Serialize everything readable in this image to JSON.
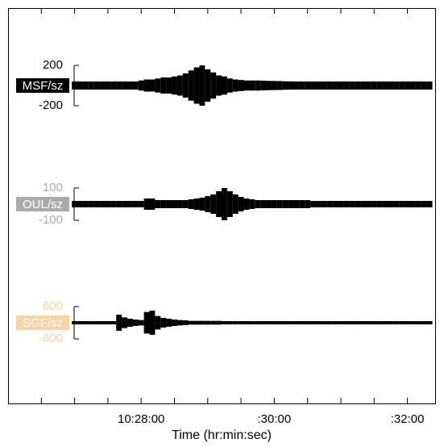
{
  "chart_data": {
    "type": "seismogram",
    "xlabel": "Time (hr:min:sec)",
    "xlim": [
      37560,
      37945
    ],
    "xticks": [
      {
        "value": 37680,
        "label": "10:28:00"
      },
      {
        "value": 37800,
        "label": ":30:00"
      },
      {
        "value": 37920,
        "label": ":32:00"
      }
    ],
    "xminorticks": [
      37590,
      37620,
      37650,
      37710,
      37740,
      37770,
      37830,
      37860,
      37890
    ],
    "trace_color": "#000000",
    "x": [
      37620,
      37625,
      37630,
      37635,
      37640,
      37645,
      37650,
      37655,
      37660,
      37665,
      37670,
      37675,
      37680,
      37685,
      37690,
      37695,
      37700,
      37705,
      37710,
      37715,
      37720,
      37725,
      37730,
      37735,
      37740,
      37745,
      37750,
      37755,
      37760,
      37765,
      37770,
      37775,
      37780,
      37785,
      37790,
      37795,
      37800,
      37805,
      37810,
      37815,
      37820,
      37825,
      37830,
      37835,
      37840,
      37845,
      37850,
      37855,
      37860,
      37865,
      37870,
      37875,
      37880,
      37885,
      37890,
      37895,
      37900,
      37905,
      37910,
      37915,
      37920,
      37925,
      37930,
      37935,
      37940
    ],
    "series": [
      {
        "name": "MSF/sz",
        "color": "#000000",
        "ylim": [
          -200,
          200
        ],
        "yticks": [
          200,
          -200
        ],
        "values": [
          40,
          40,
          40,
          40,
          40,
          40,
          40,
          40,
          40,
          40,
          40,
          40,
          50,
          60,
          60,
          70,
          80,
          80,
          90,
          100,
          120,
          150,
          180,
          200,
          160,
          130,
          100,
          90,
          70,
          60,
          55,
          50,
          50,
          50,
          48,
          46,
          45,
          44,
          42,
          41,
          40,
          40,
          40,
          40,
          40,
          40,
          40,
          40,
          40,
          40,
          40,
          40,
          40,
          40,
          40,
          40,
          40,
          40,
          40,
          40,
          40,
          40,
          40,
          40,
          40
        ]
      },
      {
        "name": "OUL/sz",
        "color": "#aaaaaa",
        "ylim": [
          -100,
          100
        ],
        "yticks": [
          100,
          -100
        ],
        "values": [
          20,
          20,
          20,
          20,
          20,
          20,
          20,
          20,
          20,
          20,
          20,
          20,
          20,
          35,
          35,
          25,
          25,
          25,
          25,
          25,
          25,
          30,
          35,
          40,
          50,
          60,
          80,
          100,
          80,
          60,
          45,
          35,
          30,
          25,
          25,
          25,
          25,
          25,
          25,
          25,
          25,
          25,
          25,
          20,
          20,
          20,
          20,
          20,
          20,
          20,
          20,
          20,
          20,
          20,
          20,
          20,
          20,
          20,
          20,
          20,
          20,
          20,
          20,
          20,
          20
        ]
      },
      {
        "name": "SGF/sz",
        "color": "#f5d5a0",
        "ylim": [
          -600,
          600
        ],
        "yticks": [
          600,
          -600
        ],
        "values": [
          60,
          60,
          60,
          60,
          60,
          60,
          60,
          60,
          300,
          200,
          150,
          120,
          100,
          400,
          450,
          250,
          180,
          150,
          120,
          100,
          90,
          70,
          70,
          70,
          70,
          70,
          70,
          60,
          60,
          60,
          60,
          60,
          60,
          60,
          60,
          60,
          60,
          60,
          60,
          60,
          60,
          60,
          60,
          60,
          60,
          60,
          60,
          60,
          60,
          60,
          60,
          60,
          60,
          60,
          60,
          60,
          60,
          60,
          60,
          60,
          60,
          60,
          60,
          60,
          60
        ]
      }
    ]
  }
}
